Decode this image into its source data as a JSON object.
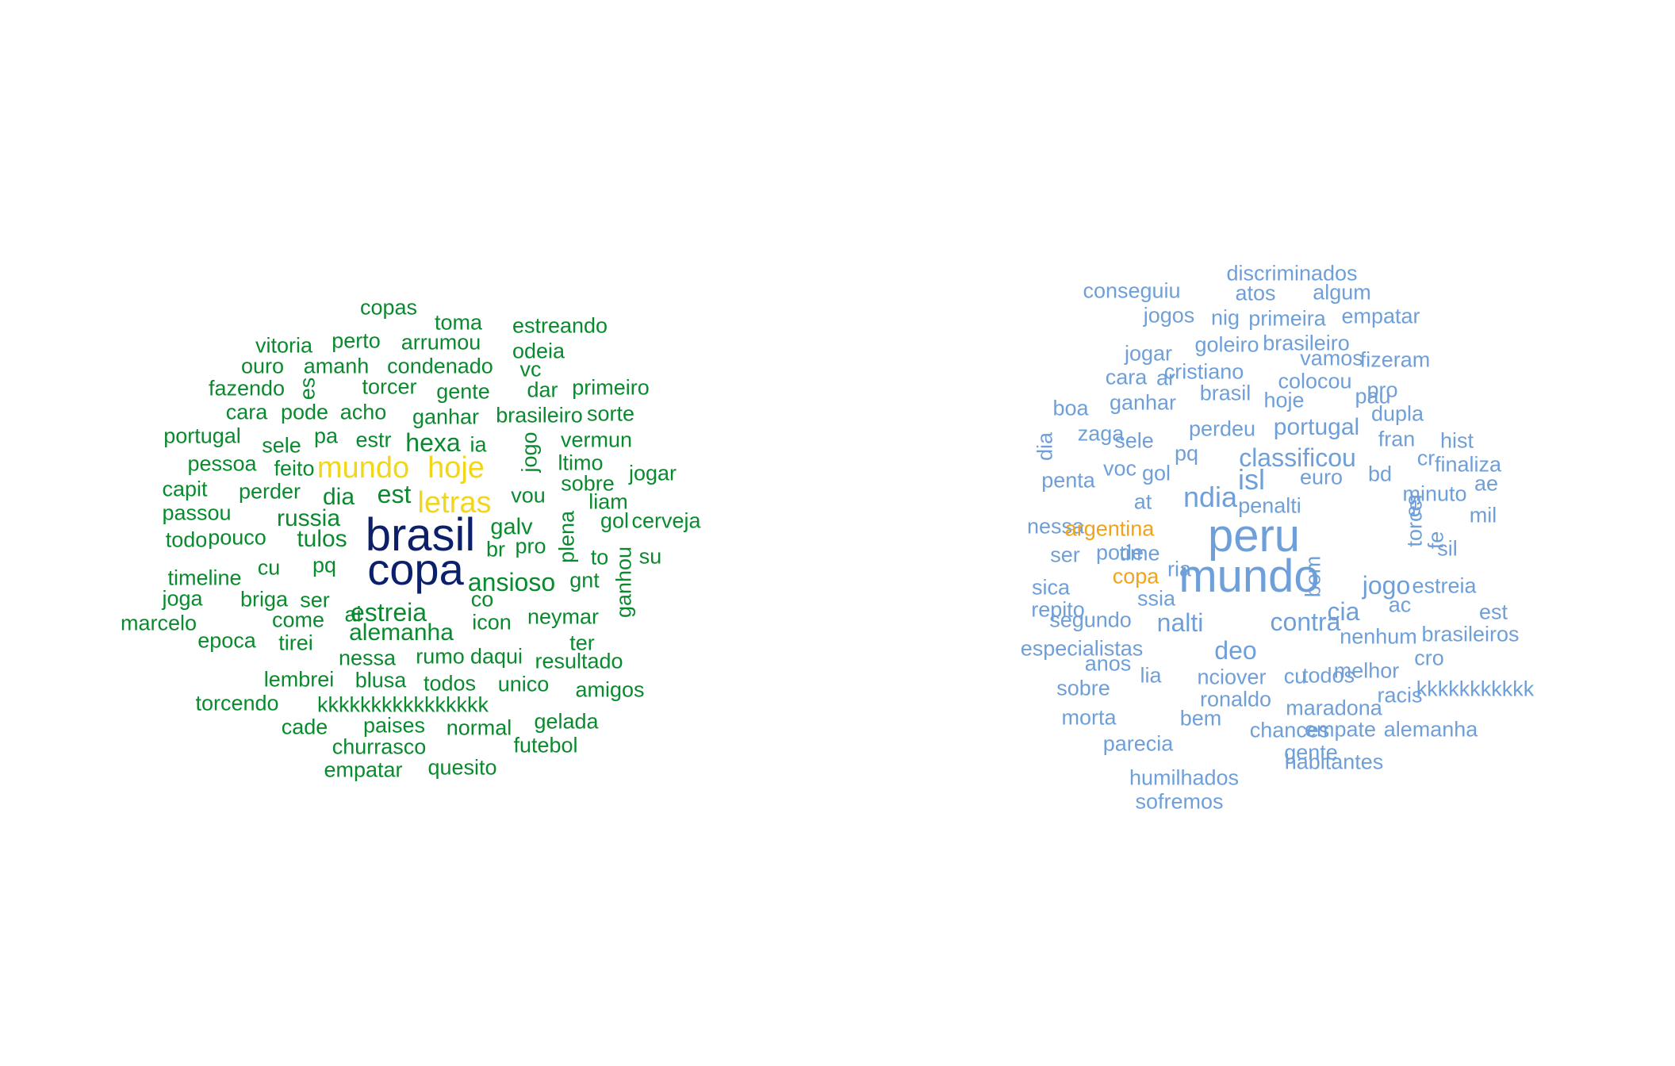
{
  "palette": {
    "brasil_low": "#0a8a2e",
    "brasil_mid": "#f2d61c",
    "brasil_high": "#0b1f6b",
    "argentina_low": "#6f9fd8",
    "argentina_high": "#f0a31d"
  },
  "clouds": [
    {
      "id": "brasil",
      "words": [
        {
          "text": "copas",
          "tier": "low"
        },
        {
          "text": "toma",
          "tier": "low"
        },
        {
          "text": "estreando",
          "tier": "low"
        },
        {
          "text": "vitoria",
          "tier": "low"
        },
        {
          "text": "perto",
          "tier": "low"
        },
        {
          "text": "arrumou",
          "tier": "low"
        },
        {
          "text": "odeia",
          "tier": "low"
        },
        {
          "text": "ouro",
          "tier": "low"
        },
        {
          "text": "amanh",
          "tier": "low"
        },
        {
          "text": "condenado",
          "tier": "low"
        },
        {
          "text": "vc",
          "tier": "low"
        },
        {
          "text": "fazendo",
          "tier": "low"
        },
        {
          "text": "es",
          "tier": "low"
        },
        {
          "text": "torcer",
          "tier": "low"
        },
        {
          "text": "gente",
          "tier": "low"
        },
        {
          "text": "dar",
          "tier": "low"
        },
        {
          "text": "primeiro",
          "tier": "low"
        },
        {
          "text": "cara",
          "tier": "low"
        },
        {
          "text": "pode",
          "tier": "low"
        },
        {
          "text": "acho",
          "tier": "low"
        },
        {
          "text": "ganhar",
          "tier": "low"
        },
        {
          "text": "brasileiro",
          "tier": "low"
        },
        {
          "text": "sorte",
          "tier": "low"
        },
        {
          "text": "portugal",
          "tier": "low"
        },
        {
          "text": "pa",
          "tier": "low"
        },
        {
          "text": "sele",
          "tier": "low"
        },
        {
          "text": "estr",
          "tier": "low"
        },
        {
          "text": "hexa",
          "tier": "low"
        },
        {
          "text": "ia",
          "tier": "low"
        },
        {
          "text": "jogo",
          "tier": "low"
        },
        {
          "text": "vermun",
          "tier": "low"
        },
        {
          "text": "pessoa",
          "tier": "low"
        },
        {
          "text": "feito",
          "tier": "low"
        },
        {
          "text": "mundo",
          "tier": "mid"
        },
        {
          "text": "hoje",
          "tier": "mid"
        },
        {
          "text": "ltimo",
          "tier": "low"
        },
        {
          "text": "jogar",
          "tier": "low"
        },
        {
          "text": "capit",
          "tier": "low"
        },
        {
          "text": "perder",
          "tier": "low"
        },
        {
          "text": "dia",
          "tier": "low"
        },
        {
          "text": "est",
          "tier": "low"
        },
        {
          "text": "letras",
          "tier": "mid"
        },
        {
          "text": "vou",
          "tier": "low"
        },
        {
          "text": "sobre",
          "tier": "low"
        },
        {
          "text": "passou",
          "tier": "low"
        },
        {
          "text": "russia",
          "tier": "low"
        },
        {
          "text": "liam",
          "tier": "low"
        },
        {
          "text": "todo",
          "tier": "low"
        },
        {
          "text": "pouco",
          "tier": "low"
        },
        {
          "text": "tulos",
          "tier": "low"
        },
        {
          "text": "brasil",
          "tier": "high"
        },
        {
          "text": "galv",
          "tier": "low"
        },
        {
          "text": "plena",
          "tier": "low"
        },
        {
          "text": "gol",
          "tier": "low"
        },
        {
          "text": "cerveja",
          "tier": "low"
        },
        {
          "text": "br",
          "tier": "low"
        },
        {
          "text": "pro",
          "tier": "low"
        },
        {
          "text": "timeline",
          "tier": "low"
        },
        {
          "text": "cu",
          "tier": "low"
        },
        {
          "text": "pq",
          "tier": "low"
        },
        {
          "text": "copa",
          "tier": "high"
        },
        {
          "text": "to",
          "tier": "low"
        },
        {
          "text": "su",
          "tier": "low"
        },
        {
          "text": "ganhou",
          "tier": "low"
        },
        {
          "text": "ansioso",
          "tier": "low"
        },
        {
          "text": "gnt",
          "tier": "low"
        },
        {
          "text": "joga",
          "tier": "low"
        },
        {
          "text": "briga",
          "tier": "low"
        },
        {
          "text": "ser",
          "tier": "low"
        },
        {
          "text": "co",
          "tier": "low"
        },
        {
          "text": "marcelo",
          "tier": "low"
        },
        {
          "text": "come",
          "tier": "low"
        },
        {
          "text": "ai",
          "tier": "low"
        },
        {
          "text": "estreia",
          "tier": "low"
        },
        {
          "text": "icon",
          "tier": "low"
        },
        {
          "text": "neymar",
          "tier": "low"
        },
        {
          "text": "epoca",
          "tier": "low"
        },
        {
          "text": "tirei",
          "tier": "low"
        },
        {
          "text": "alemanha",
          "tier": "low"
        },
        {
          "text": "ter",
          "tier": "low"
        },
        {
          "text": "nessa",
          "tier": "low"
        },
        {
          "text": "rumo",
          "tier": "low"
        },
        {
          "text": "daqui",
          "tier": "low"
        },
        {
          "text": "resultado",
          "tier": "low"
        },
        {
          "text": "lembrei",
          "tier": "low"
        },
        {
          "text": "blusa",
          "tier": "low"
        },
        {
          "text": "todos",
          "tier": "low"
        },
        {
          "text": "unico",
          "tier": "low"
        },
        {
          "text": "amigos",
          "tier": "low"
        },
        {
          "text": "torcendo",
          "tier": "low"
        },
        {
          "text": "kkkkkkkkkkkkkkkk",
          "tier": "low"
        },
        {
          "text": "cade",
          "tier": "low"
        },
        {
          "text": "paises",
          "tier": "low"
        },
        {
          "text": "normal",
          "tier": "low"
        },
        {
          "text": "gelada",
          "tier": "low"
        },
        {
          "text": "churrasco",
          "tier": "low"
        },
        {
          "text": "futebol",
          "tier": "low"
        },
        {
          "text": "empatar",
          "tier": "low"
        },
        {
          "text": "quesito",
          "tier": "low"
        }
      ]
    },
    {
      "id": "argentina",
      "words": [
        {
          "text": "discriminados",
          "tier": "low"
        },
        {
          "text": "conseguiu",
          "tier": "low"
        },
        {
          "text": "atos",
          "tier": "low"
        },
        {
          "text": "algum",
          "tier": "low"
        },
        {
          "text": "jogos",
          "tier": "low"
        },
        {
          "text": "nig",
          "tier": "low"
        },
        {
          "text": "primeira",
          "tier": "low"
        },
        {
          "text": "empatar",
          "tier": "low"
        },
        {
          "text": "jogar",
          "tier": "low"
        },
        {
          "text": "goleiro",
          "tier": "low"
        },
        {
          "text": "brasileiro",
          "tier": "low"
        },
        {
          "text": "vamos",
          "tier": "low"
        },
        {
          "text": "fizeram",
          "tier": "low"
        },
        {
          "text": "cara",
          "tier": "low"
        },
        {
          "text": "ar",
          "tier": "low"
        },
        {
          "text": "cristiano",
          "tier": "low"
        },
        {
          "text": "colocou",
          "tier": "low"
        },
        {
          "text": "brasil",
          "tier": "low"
        },
        {
          "text": "hoje",
          "tier": "low"
        },
        {
          "text": "pau",
          "tier": "low"
        },
        {
          "text": "pro",
          "tier": "low"
        },
        {
          "text": "boa",
          "tier": "low"
        },
        {
          "text": "ganhar",
          "tier": "low"
        },
        {
          "text": "dupla",
          "tier": "low"
        },
        {
          "text": "perdeu",
          "tier": "low"
        },
        {
          "text": "portugal",
          "tier": "low"
        },
        {
          "text": "zaga",
          "tier": "low"
        },
        {
          "text": "sele",
          "tier": "low"
        },
        {
          "text": "fran",
          "tier": "low"
        },
        {
          "text": "hist",
          "tier": "low"
        },
        {
          "text": "dia",
          "tier": "low"
        },
        {
          "text": "pq",
          "tier": "low"
        },
        {
          "text": "classificou",
          "tier": "low"
        },
        {
          "text": "cr",
          "tier": "low"
        },
        {
          "text": "finaliza",
          "tier": "low"
        },
        {
          "text": "voc",
          "tier": "low"
        },
        {
          "text": "gol",
          "tier": "low"
        },
        {
          "text": "isl",
          "tier": "low"
        },
        {
          "text": "euro",
          "tier": "low"
        },
        {
          "text": "bd",
          "tier": "low"
        },
        {
          "text": "ae",
          "tier": "low"
        },
        {
          "text": "penta",
          "tier": "low"
        },
        {
          "text": "ndia",
          "tier": "low"
        },
        {
          "text": "es",
          "tier": "low"
        },
        {
          "text": "minuto",
          "tier": "low"
        },
        {
          "text": "at",
          "tier": "low"
        },
        {
          "text": "penalti",
          "tier": "low"
        },
        {
          "text": "torcer",
          "tier": "low"
        },
        {
          "text": "mil",
          "tier": "low"
        },
        {
          "text": "nessa",
          "tier": "low"
        },
        {
          "text": "argentina",
          "tier": "high"
        },
        {
          "text": "peru",
          "tier": "low"
        },
        {
          "text": "fe",
          "tier": "low"
        },
        {
          "text": "time",
          "tier": "low"
        },
        {
          "text": "ser",
          "tier": "low"
        },
        {
          "text": "pode",
          "tier": "low"
        },
        {
          "text": "sil",
          "tier": "low"
        },
        {
          "text": "ria",
          "tier": "low"
        },
        {
          "text": "bom",
          "tier": "low"
        },
        {
          "text": "copa",
          "tier": "high"
        },
        {
          "text": "mundo",
          "tier": "low"
        },
        {
          "text": "jogo",
          "tier": "low"
        },
        {
          "text": "sica",
          "tier": "low"
        },
        {
          "text": "estreia",
          "tier": "low"
        },
        {
          "text": "ssia",
          "tier": "low"
        },
        {
          "text": "ac",
          "tier": "low"
        },
        {
          "text": "repito",
          "tier": "low"
        },
        {
          "text": "cia",
          "tier": "low"
        },
        {
          "text": "est",
          "tier": "low"
        },
        {
          "text": "segundo",
          "tier": "low"
        },
        {
          "text": "nalti",
          "tier": "low"
        },
        {
          "text": "contra",
          "tier": "low"
        },
        {
          "text": "nenhum",
          "tier": "low"
        },
        {
          "text": "brasileiros",
          "tier": "low"
        },
        {
          "text": "especialistas",
          "tier": "low"
        },
        {
          "text": "deo",
          "tier": "low"
        },
        {
          "text": "cro",
          "tier": "low"
        },
        {
          "text": "anos",
          "tier": "low"
        },
        {
          "text": "melhor",
          "tier": "low"
        },
        {
          "text": "lia",
          "tier": "low"
        },
        {
          "text": "nciover",
          "tier": "low"
        },
        {
          "text": "cu",
          "tier": "low"
        },
        {
          "text": "todos",
          "tier": "low"
        },
        {
          "text": "sobre",
          "tier": "low"
        },
        {
          "text": "racis",
          "tier": "low"
        },
        {
          "text": "kkkkkkkkkkk",
          "tier": "low"
        },
        {
          "text": "ronaldo",
          "tier": "low"
        },
        {
          "text": "maradona",
          "tier": "low"
        },
        {
          "text": "morta",
          "tier": "low"
        },
        {
          "text": "bem",
          "tier": "low"
        },
        {
          "text": "chances",
          "tier": "low"
        },
        {
          "text": "empate",
          "tier": "low"
        },
        {
          "text": "alemanha",
          "tier": "low"
        },
        {
          "text": "parecia",
          "tier": "low"
        },
        {
          "text": "gente",
          "tier": "low"
        },
        {
          "text": "habitantes",
          "tier": "low"
        },
        {
          "text": "humilhados",
          "tier": "low"
        },
        {
          "text": "sofremos",
          "tier": "low"
        }
      ]
    }
  ]
}
